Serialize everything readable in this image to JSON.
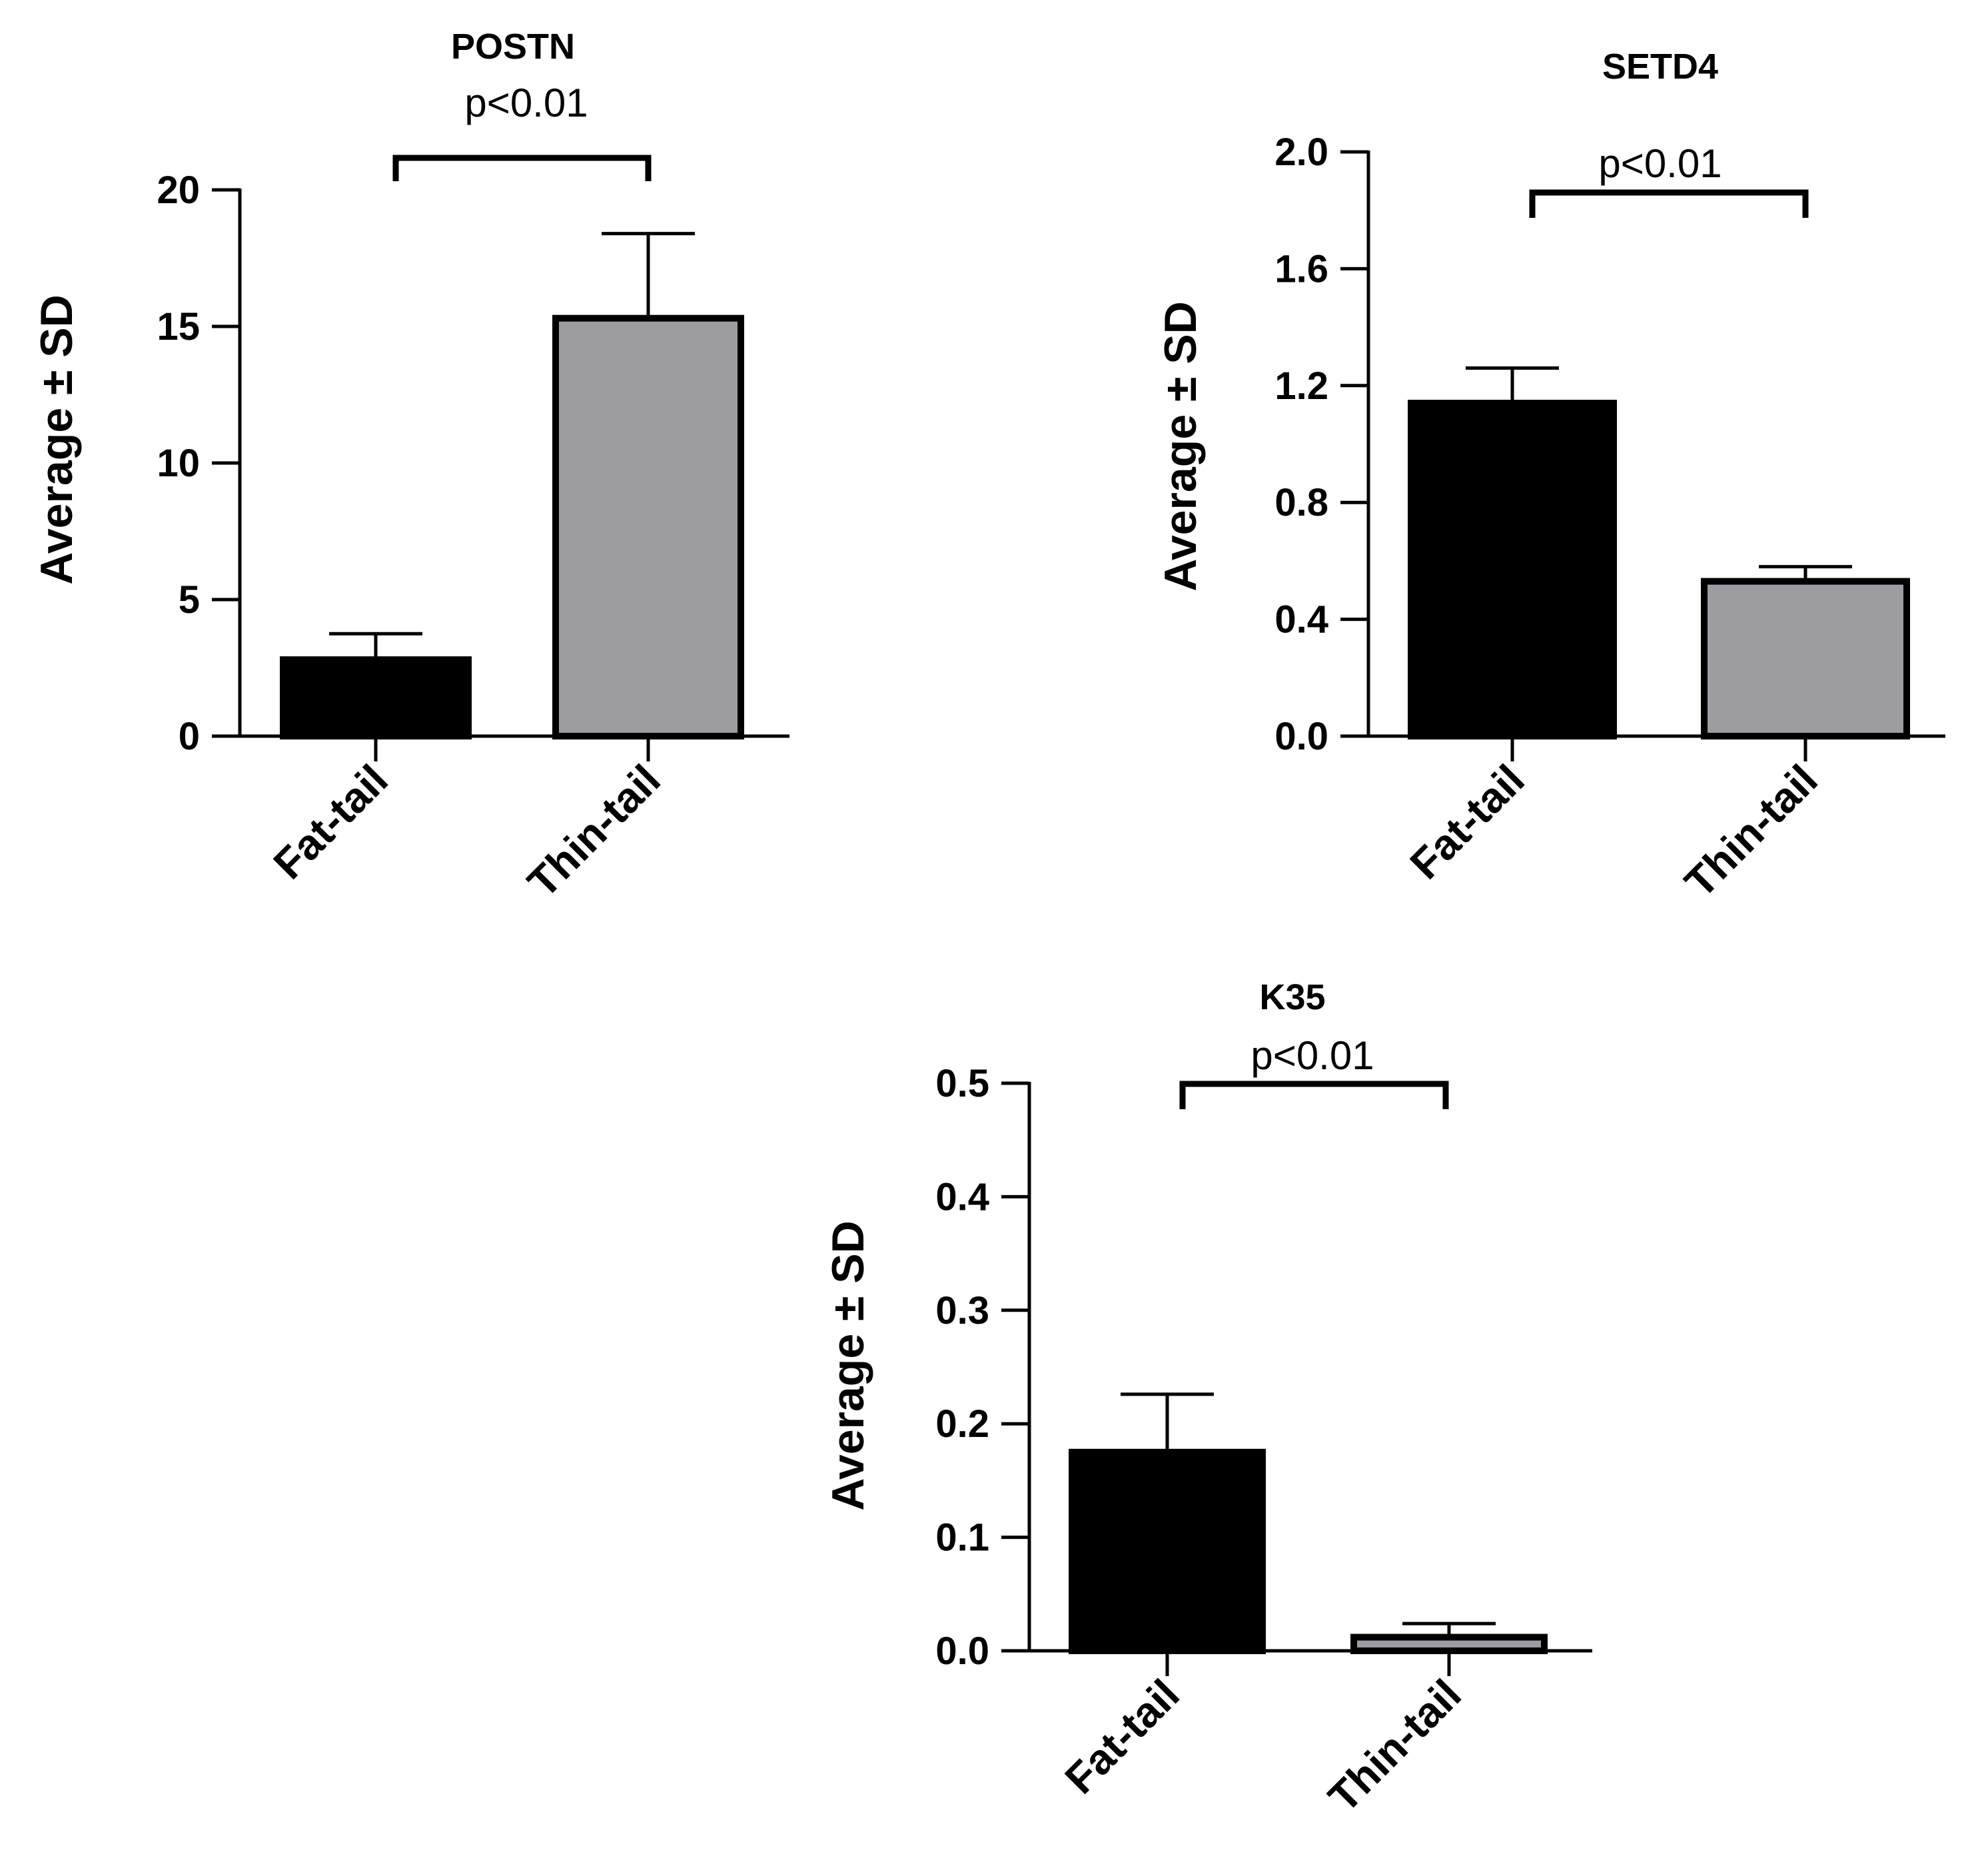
{
  "figure_colors": {
    "fat_tail": "#000000",
    "thin_tail": "#9d9ca1",
    "axis": "#000000",
    "background": "#ffffff"
  },
  "chart_data": [
    {
      "type": "bar",
      "title": "POSTN",
      "ylabel": "Average ± SD",
      "xlabel": "",
      "categories": [
        "Fat-tail",
        "Thin-tail"
      ],
      "values": [
        2.8,
        15.3
      ],
      "errors": [
        0.95,
        3.1
      ],
      "colors": [
        "#000000",
        "#9d9ca1"
      ],
      "ylim": [
        0,
        20
      ],
      "yticks": [
        0,
        5,
        10,
        15,
        20
      ],
      "ytick_labels": [
        "0",
        "5",
        "10",
        "15",
        "20"
      ],
      "significance": {
        "text": "p<0.01",
        "pair": [
          "Fat-tail",
          "Thin-tail"
        ]
      },
      "grid": false,
      "legend": "none"
    },
    {
      "type": "bar",
      "title": "SETD4",
      "ylabel": "Average ± SD",
      "xlabel": "",
      "categories": [
        "Fat-tail",
        "Thin-tail"
      ],
      "values": [
        1.14,
        0.53
      ],
      "errors": [
        0.12,
        0.05
      ],
      "colors": [
        "#000000",
        "#9d9ca1"
      ],
      "ylim": [
        0,
        2.0
      ],
      "yticks": [
        0,
        0.4,
        0.8,
        1.2,
        1.6,
        2.0
      ],
      "ytick_labels": [
        "0.0",
        "0.4",
        "0.8",
        "1.2",
        "1.6",
        "2.0"
      ],
      "significance": {
        "text": "p<0.01",
        "pair": [
          "Fat-tail",
          "Thin-tail"
        ]
      },
      "grid": false,
      "legend": "none"
    },
    {
      "type": "bar",
      "title": "K35",
      "ylabel": "Average ± SD",
      "xlabel": "",
      "categories": [
        "Fat-tail",
        "Thin-tail"
      ],
      "values": [
        0.175,
        0.012
      ],
      "errors": [
        0.051,
        0.012
      ],
      "colors": [
        "#000000",
        "#9d9ca1"
      ],
      "ylim": [
        0,
        0.5
      ],
      "yticks": [
        0,
        0.1,
        0.2,
        0.3,
        0.4,
        0.5
      ],
      "ytick_labels": [
        "0.0",
        "0.1",
        "0.2",
        "0.3",
        "0.4",
        "0.5"
      ],
      "significance": {
        "text": "p<0.01",
        "pair": [
          "Fat-tail",
          "Thin-tail"
        ]
      },
      "grid": false,
      "legend": "none"
    }
  ]
}
